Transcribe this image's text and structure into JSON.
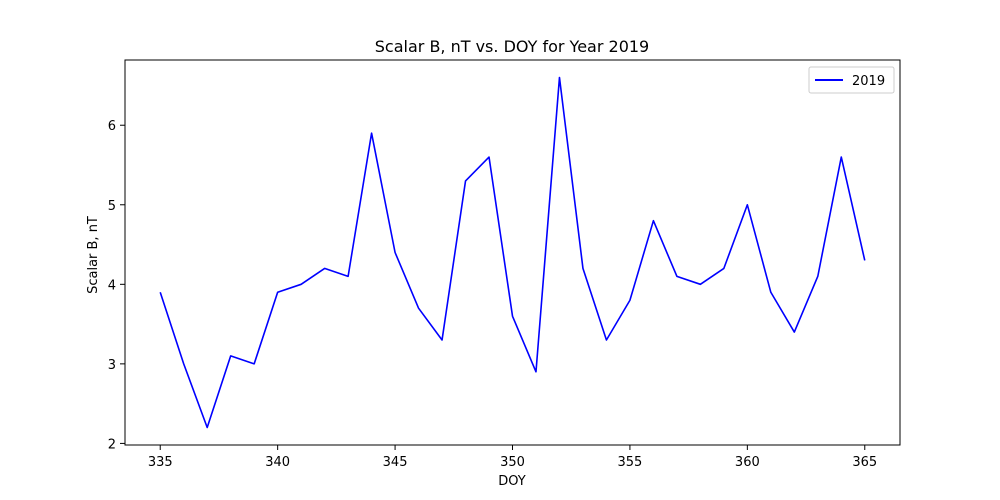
{
  "chart_data": {
    "type": "line",
    "title": "Scalar B, nT  vs. DOY for Year 2019",
    "xlabel": "DOY",
    "ylabel": "Scalar B, nT",
    "xlim": [
      333.5,
      366.5
    ],
    "ylim": [
      1.98,
      6.82
    ],
    "xticks": [
      335,
      340,
      345,
      350,
      355,
      360,
      365
    ],
    "yticks": [
      2,
      3,
      4,
      5,
      6
    ],
    "grid": false,
    "legend_position": "top-right",
    "series": [
      {
        "name": "2019",
        "color": "#0000ff",
        "x": [
          335,
          336,
          337,
          338,
          339,
          340,
          341,
          342,
          343,
          344,
          345,
          346,
          347,
          348,
          349,
          350,
          351,
          352,
          353,
          354,
          355,
          356,
          357,
          358,
          359,
          360,
          361,
          362,
          363,
          364,
          365
        ],
        "y": [
          3.9,
          3.0,
          2.2,
          3.1,
          3.0,
          3.9,
          4.0,
          4.2,
          4.1,
          5.9,
          4.4,
          3.7,
          3.3,
          5.3,
          5.6,
          3.6,
          2.9,
          6.6,
          4.2,
          3.3,
          3.8,
          4.8,
          4.1,
          4.0,
          4.2,
          5.0,
          3.9,
          3.4,
          4.1,
          5.6,
          4.3
        ]
      }
    ]
  }
}
